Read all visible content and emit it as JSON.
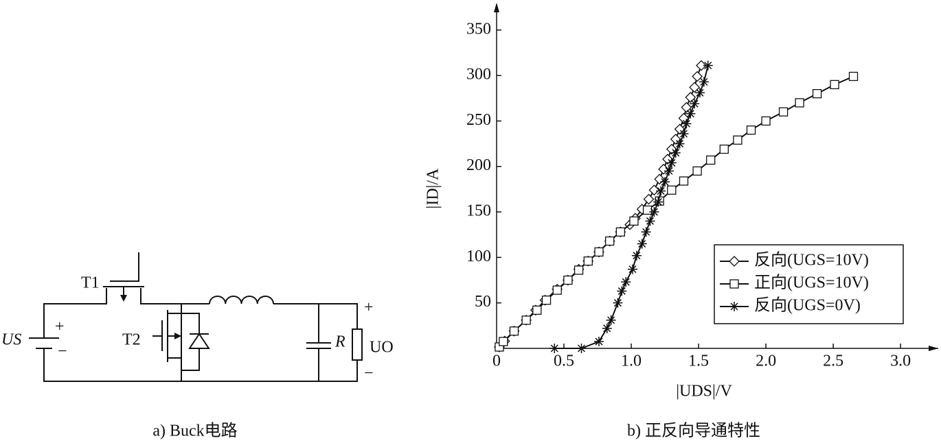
{
  "diagram": {
    "t1": "T1",
    "t2": "T2",
    "us": "US",
    "us_plus": "+",
    "us_minus": "−",
    "r": "R",
    "uo": "UO",
    "uo_plus": "+",
    "uo_minus": "−",
    "caption": "a) Buck电路"
  },
  "chart_data": {
    "type": "line",
    "caption": "b) 正反向导通特性",
    "x_label": "|UDS|/V",
    "y_label": "|ID|/A",
    "xlim": [
      0,
      3.28
    ],
    "ylim": [
      0,
      380
    ],
    "xticks": [
      0,
      0.5,
      {
        "value": 1,
        "label": "1.0"
      },
      1.5,
      {
        "value": 2,
        "label": "2.0"
      },
      2.5,
      {
        "value": 3,
        "label": "3.0"
      }
    ],
    "yticks": [
      50,
      100,
      150,
      200,
      250,
      300,
      350
    ],
    "legend": "lower right",
    "grid": false,
    "series": [
      {
        "name": "反向(UGS=10V)",
        "color": "#111",
        "marker": "diamond",
        "x": [
          0.02,
          0.06,
          0.13,
          0.22,
          0.29,
          0.36,
          0.45,
          0.53,
          0.61,
          0.68,
          0.76,
          0.84,
          0.92,
          0.99,
          1.03,
          1.08,
          1.13,
          1.17,
          1.21,
          1.24,
          1.27,
          1.3,
          1.33,
          1.36,
          1.39,
          1.41,
          1.44,
          1.47,
          1.49,
          1.52
        ],
        "values": [
          1.5,
          8,
          19,
          31,
          42,
          53,
          65,
          75,
          87,
          96,
          106,
          118,
          128,
          136,
          143,
          153,
          164,
          174,
          186,
          197,
          208,
          219,
          230,
          241,
          253,
          265,
          276,
          287,
          299,
          311
        ]
      },
      {
        "name": "正向(UGS=10V)",
        "color": "#111",
        "marker": "square",
        "x": [
          0.02,
          0.05,
          0.13,
          0.22,
          0.3,
          0.37,
          0.45,
          0.53,
          0.61,
          0.68,
          0.76,
          0.84,
          0.92,
          1.02,
          1.12,
          1.21,
          1.3,
          1.39,
          1.49,
          1.59,
          1.69,
          1.79,
          1.89,
          2.0,
          2.13,
          2.25,
          2.38,
          2.51,
          2.65
        ],
        "values": [
          1.5,
          7.5,
          19,
          31,
          42,
          53,
          64,
          75,
          86,
          96,
          106,
          118,
          128,
          140,
          152,
          162,
          174,
          184,
          195,
          207,
          219,
          229,
          240,
          250,
          260,
          270,
          280,
          290,
          299
        ]
      },
      {
        "name": "反向(UGS=0V)",
        "color": "#111",
        "marker": "star",
        "x": [
          0.43,
          0.63,
          0.76,
          0.82,
          0.85,
          0.9,
          0.93,
          0.96,
          1.01,
          1.04,
          1.08,
          1.11,
          1.14,
          1.17,
          1.2,
          1.22,
          1.25,
          1.28,
          1.3,
          1.33,
          1.36,
          1.39,
          1.41,
          1.44,
          1.47,
          1.51,
          1.54,
          1.57
        ],
        "values": [
          0,
          0,
          7.5,
          22,
          31,
          50,
          63,
          73,
          87,
          102,
          115,
          128,
          140,
          150,
          161,
          173,
          183,
          195,
          204,
          215,
          225,
          236,
          247,
          258,
          269,
          281,
          293,
          311
        ]
      }
    ]
  }
}
